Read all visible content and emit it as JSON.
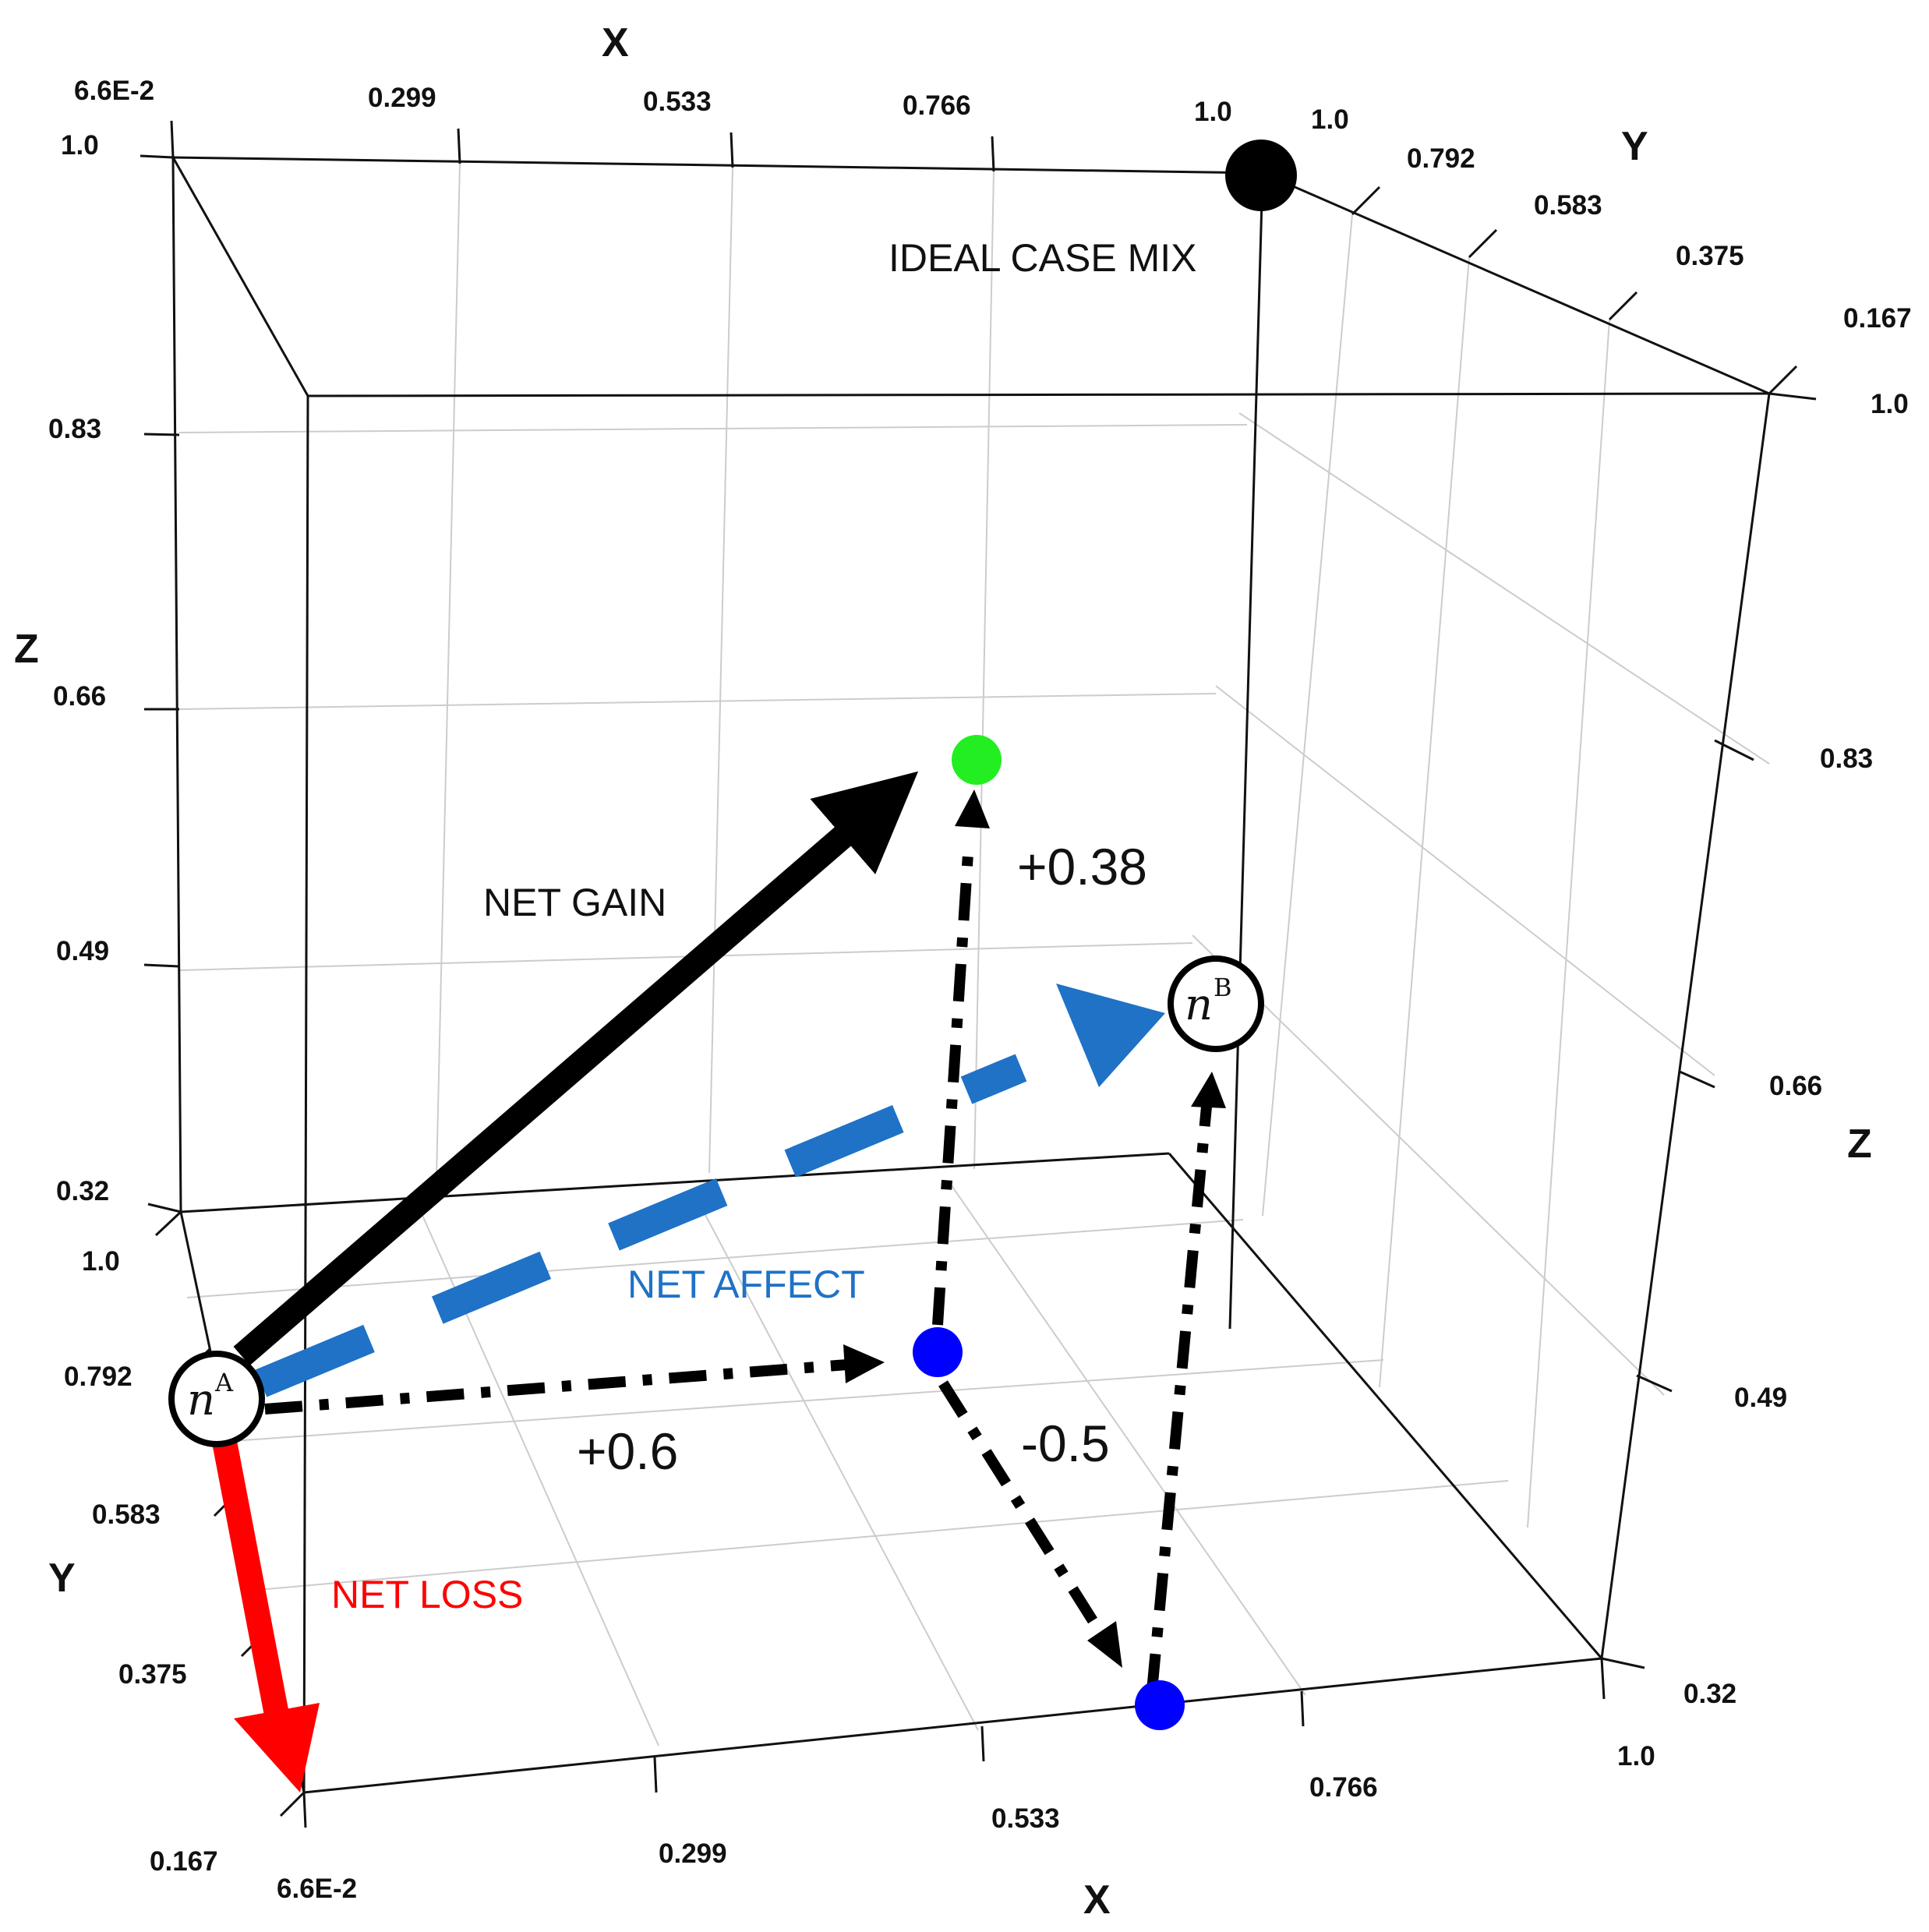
{
  "axes": {
    "x": {
      "title": "X",
      "ticks": [
        "6.6E-2",
        "0.299",
        "0.533",
        "0.766",
        "1.0"
      ]
    },
    "y": {
      "title": "Y",
      "ticks": [
        "1.0",
        "0.792",
        "0.583",
        "0.375",
        "0.167"
      ]
    },
    "z": {
      "title": "Z",
      "ticks": [
        "1.0",
        "0.83",
        "0.66",
        "0.49",
        "0.32"
      ]
    }
  },
  "labels": {
    "ideal": "IDEAL CASE MIX",
    "net_gain": "NET GAIN",
    "net_affect": "NET AFFECT",
    "net_loss": "NET LOSS",
    "delta_x": "+0.6",
    "delta_y": "-0.5",
    "delta_z": "+0.38"
  },
  "nodes": {
    "a": {
      "base": "n",
      "sup": "A"
    },
    "b": {
      "base": "n",
      "sup": "B"
    }
  },
  "colors": {
    "net_gain": "#000000",
    "net_affect": "#1f72c6",
    "net_loss": "#ff0000",
    "gain_point": "#22ee22",
    "step_point": "#0000ff",
    "ideal_point": "#000000",
    "grid": "#cccccc"
  }
}
